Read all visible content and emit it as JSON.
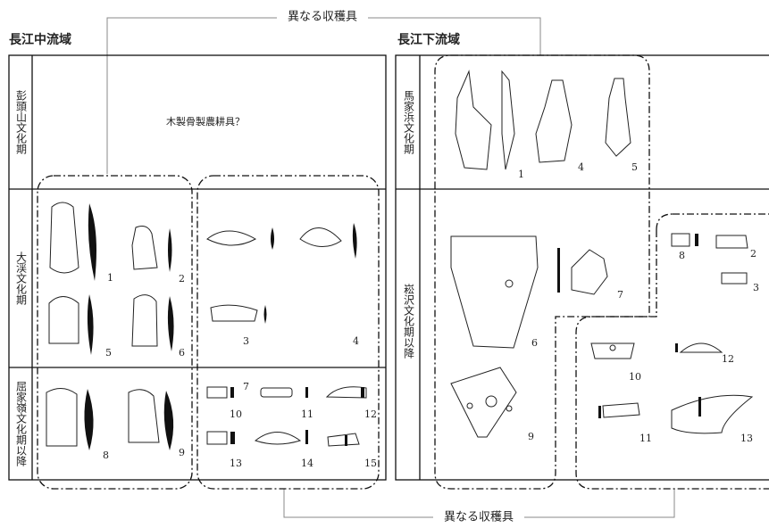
{
  "top_label": "異なる収穫具",
  "bottom_label": "異なる収穫具",
  "left_panel": {
    "title": "長江中流域",
    "periods": [
      "彭頭山文化期",
      "大渓文化期",
      "屈家嶺文化期以降"
    ],
    "note": "木製骨製農耕具？",
    "figure_numbers": [
      "1",
      "2",
      "3",
      "4",
      "5",
      "6",
      "7",
      "8",
      "9",
      "10",
      "11",
      "12",
      "13",
      "14",
      "15"
    ]
  },
  "right_panel": {
    "title": "長江下流域",
    "periods": [
      "馬家浜文化期",
      "崧沢文化期以降"
    ],
    "figure_numbers": [
      "1",
      "4",
      "5",
      "6",
      "7",
      "8",
      "2",
      "3",
      "9",
      "10",
      "11",
      "12",
      "13"
    ]
  }
}
